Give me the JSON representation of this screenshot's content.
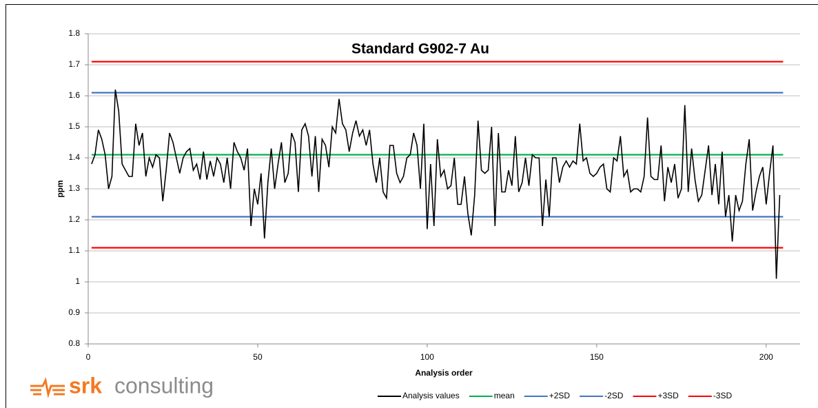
{
  "chart_data": {
    "type": "line",
    "title": "Standard G902-7 Au",
    "x_label": "Analysis order",
    "y_label": "ppm",
    "xlim": [
      0,
      210
    ],
    "xticks": [
      0,
      50,
      100,
      150,
      200
    ],
    "ylim": [
      0.8,
      1.8
    ],
    "yticks": [
      0.8,
      0.9,
      1,
      1.1,
      1.2,
      1.3,
      1.4,
      1.5,
      1.6,
      1.7,
      1.8
    ],
    "grid": true,
    "legend": "bottom",
    "series": [
      {
        "name": "Analysis values",
        "color": "#000000",
        "x": [
          1,
          2,
          3,
          4,
          5,
          6,
          7,
          8,
          9,
          10,
          11,
          12,
          13,
          14,
          15,
          16,
          17,
          18,
          19,
          20,
          21,
          22,
          23,
          24,
          25,
          26,
          27,
          28,
          29,
          30,
          31,
          32,
          33,
          34,
          35,
          36,
          37,
          38,
          39,
          40,
          41,
          42,
          43,
          44,
          45,
          46,
          47,
          48,
          49,
          50,
          51,
          52,
          53,
          54,
          55,
          56,
          57,
          58,
          59,
          60,
          61,
          62,
          63,
          64,
          65,
          66,
          67,
          68,
          69,
          70,
          71,
          72,
          73,
          74,
          75,
          76,
          77,
          78,
          79,
          80,
          81,
          82,
          83,
          84,
          85,
          86,
          87,
          88,
          89,
          90,
          91,
          92,
          93,
          94,
          95,
          96,
          97,
          98,
          99,
          100,
          101,
          102,
          103,
          104,
          105,
          106,
          107,
          108,
          109,
          110,
          111,
          112,
          113,
          114,
          115,
          116,
          117,
          118,
          119,
          120,
          121,
          122,
          123,
          124,
          125,
          126,
          127,
          128,
          129,
          130,
          131,
          132,
          133,
          134,
          135,
          136,
          137,
          138,
          139,
          140,
          141,
          142,
          143,
          144,
          145,
          146,
          147,
          148,
          149,
          150,
          151,
          152,
          153,
          154,
          155,
          156,
          157,
          158,
          159,
          160,
          161,
          162,
          163,
          164,
          165,
          166,
          167,
          168,
          169,
          170,
          171,
          172,
          173,
          174,
          175,
          176,
          177,
          178,
          179,
          180,
          181,
          182,
          183,
          184,
          185,
          186,
          187,
          188,
          189,
          190,
          191,
          192,
          193,
          194,
          195,
          196,
          197,
          198,
          199,
          200,
          201,
          202,
          203,
          204
        ],
        "values": [
          1.38,
          1.41,
          1.49,
          1.46,
          1.41,
          1.3,
          1.34,
          1.62,
          1.55,
          1.38,
          1.36,
          1.34,
          1.34,
          1.51,
          1.44,
          1.48,
          1.34,
          1.4,
          1.37,
          1.41,
          1.4,
          1.26,
          1.36,
          1.48,
          1.45,
          1.4,
          1.35,
          1.4,
          1.42,
          1.43,
          1.36,
          1.38,
          1.33,
          1.42,
          1.33,
          1.39,
          1.34,
          1.4,
          1.38,
          1.32,
          1.4,
          1.3,
          1.45,
          1.42,
          1.4,
          1.36,
          1.43,
          1.18,
          1.3,
          1.25,
          1.35,
          1.14,
          1.32,
          1.43,
          1.3,
          1.38,
          1.45,
          1.32,
          1.35,
          1.48,
          1.45,
          1.29,
          1.49,
          1.51,
          1.47,
          1.34,
          1.47,
          1.29,
          1.46,
          1.44,
          1.37,
          1.5,
          1.48,
          1.59,
          1.51,
          1.49,
          1.42,
          1.48,
          1.52,
          1.47,
          1.49,
          1.44,
          1.49,
          1.38,
          1.32,
          1.4,
          1.29,
          1.27,
          1.44,
          1.44,
          1.35,
          1.32,
          1.34,
          1.4,
          1.41,
          1.48,
          1.44,
          1.3,
          1.51,
          1.17,
          1.38,
          1.18,
          1.46,
          1.34,
          1.36,
          1.3,
          1.31,
          1.4,
          1.25,
          1.25,
          1.34,
          1.22,
          1.15,
          1.28,
          1.52,
          1.36,
          1.35,
          1.36,
          1.5,
          1.18,
          1.48,
          1.29,
          1.29,
          1.36,
          1.31,
          1.47,
          1.29,
          1.32,
          1.4,
          1.31,
          1.41,
          1.4,
          1.4,
          1.18,
          1.33,
          1.21,
          1.4,
          1.4,
          1.32,
          1.37,
          1.39,
          1.37,
          1.39,
          1.38,
          1.51,
          1.39,
          1.4,
          1.35,
          1.34,
          1.35,
          1.37,
          1.38,
          1.3,
          1.29,
          1.4,
          1.39,
          1.47,
          1.34,
          1.36,
          1.29,
          1.3,
          1.3,
          1.29,
          1.34,
          1.53,
          1.34,
          1.33,
          1.33,
          1.44,
          1.26,
          1.37,
          1.32,
          1.38,
          1.27,
          1.3,
          1.57,
          1.29,
          1.43,
          1.33,
          1.26,
          1.28,
          1.36,
          1.44,
          1.28,
          1.38,
          1.25,
          1.42,
          1.21,
          1.28,
          1.13,
          1.28,
          1.23,
          1.26,
          1.38,
          1.46,
          1.23,
          1.29,
          1.34,
          1.37,
          1.25,
          1.35,
          1.44,
          1.01,
          1.28
        ]
      },
      {
        "name": "mean",
        "color": "#00b050",
        "x": [
          1,
          205
        ],
        "values": [
          1.41,
          1.41
        ]
      },
      {
        "name": "+2SD",
        "color": "#4472c4",
        "x": [
          1,
          205
        ],
        "values": [
          1.61,
          1.61
        ]
      },
      {
        "name": "-2SD",
        "color": "#4472c4",
        "x": [
          1,
          205
        ],
        "values": [
          1.21,
          1.21
        ]
      },
      {
        "name": "+3SD",
        "color": "#ff0000",
        "x": [
          1,
          205
        ],
        "values": [
          1.71,
          1.71
        ]
      },
      {
        "name": "-3SD",
        "color": "#ff0000",
        "x": [
          1,
          205
        ],
        "values": [
          1.11,
          1.11
        ]
      }
    ]
  },
  "logo": {
    "brand": "srk",
    "tagline": "consulting"
  }
}
